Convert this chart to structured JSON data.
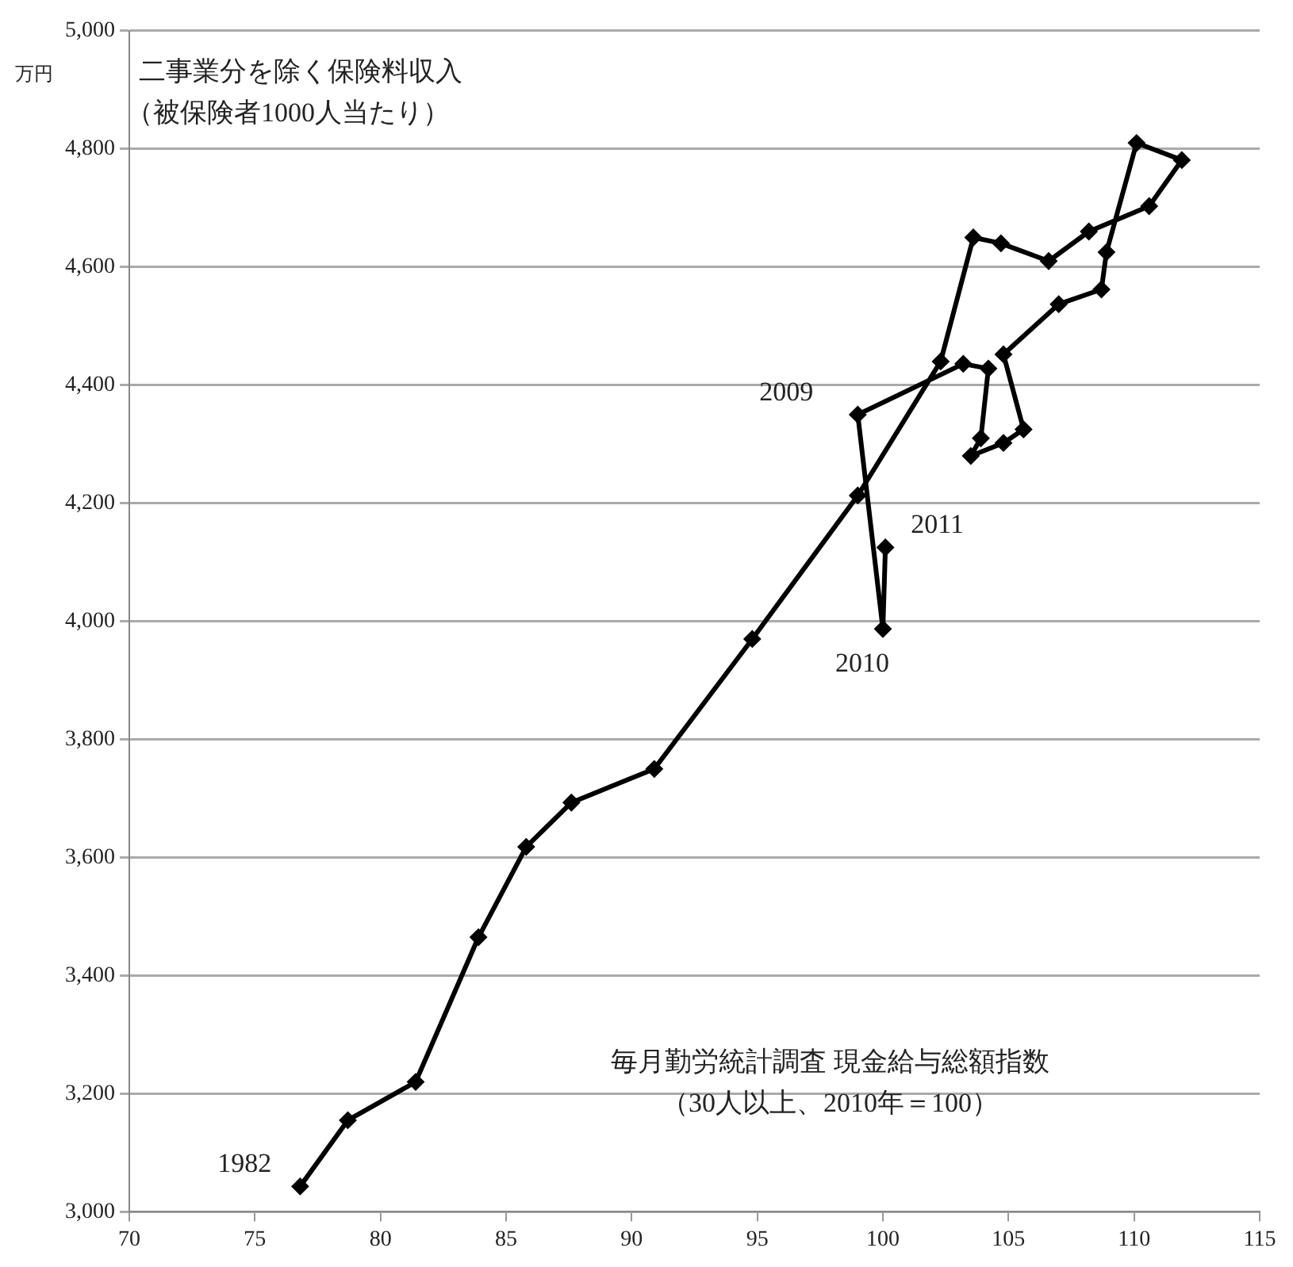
{
  "chart_data": {
    "type": "line",
    "ylabel": "二事業分を除く保険料収入（被保険者1000人当たり）",
    "xlabel": "毎月勤労統計調査 現金給与総額指数（30人以上、2010年＝100）",
    "x": [
      76.8,
      78.7,
      81.4,
      83.9,
      85.8,
      87.6,
      90.9,
      94.8,
      99.0,
      102.3,
      103.6,
      104.7,
      106.6,
      108.2,
      110.6,
      111.9,
      110.1,
      108.9,
      108.7,
      107.0,
      104.8,
      105.6,
      104.8,
      103.5,
      103.9,
      104.2,
      103.2,
      99.0,
      100.0,
      100.1
    ],
    "series": [
      {
        "color": "#000000",
        "values": [
          3043,
          3155,
          3220,
          3465,
          3618,
          3693,
          3750,
          3970,
          4213,
          4440,
          4650,
          4640,
          4610,
          4660,
          4703,
          4781,
          4810,
          4625,
          4562,
          4537,
          4452,
          4325,
          4302,
          4280,
          4310,
          4428,
          4436,
          4350,
          3987,
          4125
        ]
      }
    ],
    "xlim": [
      70,
      115
    ],
    "xticks": [
      70,
      75,
      80,
      85,
      90,
      95,
      100,
      105,
      110,
      115
    ],
    "ylim": [
      3000,
      5000
    ],
    "yticks": [
      {
        "value": 3000,
        "label": "3,000"
      },
      {
        "value": 3200,
        "label": "3,200"
      },
      {
        "value": 3400,
        "label": "3,400"
      },
      {
        "value": 3600,
        "label": "3,600"
      },
      {
        "value": 3800,
        "label": "3,800"
      },
      {
        "value": 4000,
        "label": "4,000"
      },
      {
        "value": 4200,
        "label": "4,200"
      },
      {
        "value": 4400,
        "label": "4,400"
      },
      {
        "value": 4600,
        "label": "4,600"
      },
      {
        "value": 4800,
        "label": "4,800"
      },
      {
        "value": 5000,
        "label": "5,000"
      }
    ],
    "annotations": [
      "万円",
      {
        "text": "1982",
        "x": 76.8,
        "y": 3043
      },
      {
        "text": "2009",
        "x": 99.0,
        "y": 4350
      },
      {
        "text": "2010",
        "x": 100.0,
        "y": 3987
      },
      {
        "text": "2011",
        "x": 100.1,
        "y": 4125
      }
    ],
    "grid": "y",
    "legend": false,
    "marker": "diamond",
    "line_style": "solid"
  }
}
